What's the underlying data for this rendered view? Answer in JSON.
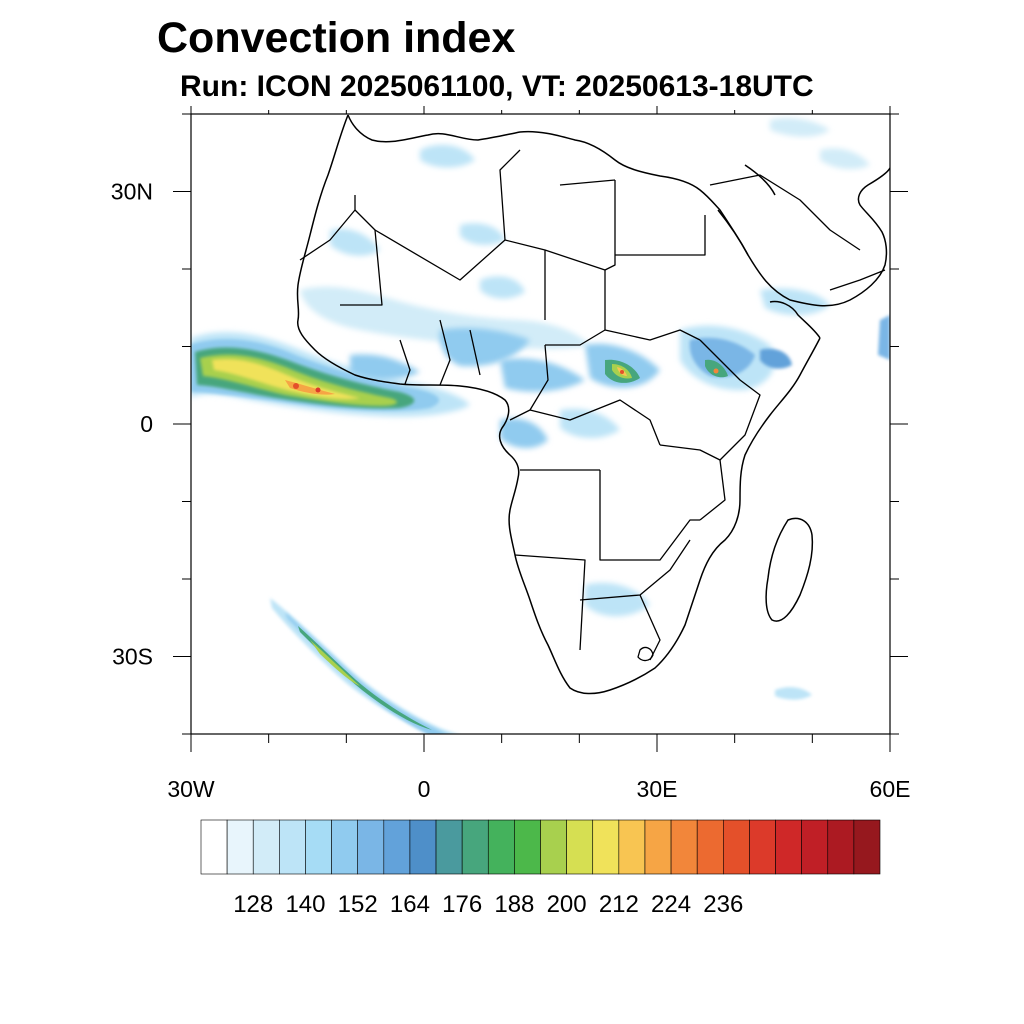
{
  "title": "Convection index",
  "subtitle": "Run: ICON 2025061100,  VT: 20250613-18UTC",
  "map": {
    "region": "Africa",
    "lon_range": [
      -30,
      60
    ],
    "lat_range": [
      -40,
      40
    ],
    "x_ticks": [
      {
        "lon": -30,
        "label": "30W"
      },
      {
        "lon": 0,
        "label": "0"
      },
      {
        "lon": 30,
        "label": "30E"
      },
      {
        "lon": 60,
        "label": "60E"
      }
    ],
    "y_ticks": [
      {
        "lat": 30,
        "label": "30N"
      },
      {
        "lat": 0,
        "label": "0"
      },
      {
        "lat": -30,
        "label": "30S"
      }
    ]
  },
  "colorbar": {
    "min": 116,
    "step": 6,
    "colors": [
      "#ffffff",
      "#e8f5fc",
      "#d2ecf8",
      "#bde4f7",
      "#a6dcf5",
      "#90cbef",
      "#7ab6e6",
      "#62a2da",
      "#4e8fc9",
      "#4a9a9e",
      "#47a67d",
      "#44b25c",
      "#4cb84a",
      "#a8d04e",
      "#d6df52",
      "#f0e25a",
      "#f8c552",
      "#f6a545",
      "#f2863a",
      "#ec6a30",
      "#e4502a",
      "#dc3a2a",
      "#cf2828",
      "#c01f26",
      "#ac1a22",
      "#96181e"
    ],
    "labels": [
      "128",
      "140",
      "152",
      "164",
      "176",
      "188",
      "200",
      "212",
      "224",
      "236"
    ]
  }
}
